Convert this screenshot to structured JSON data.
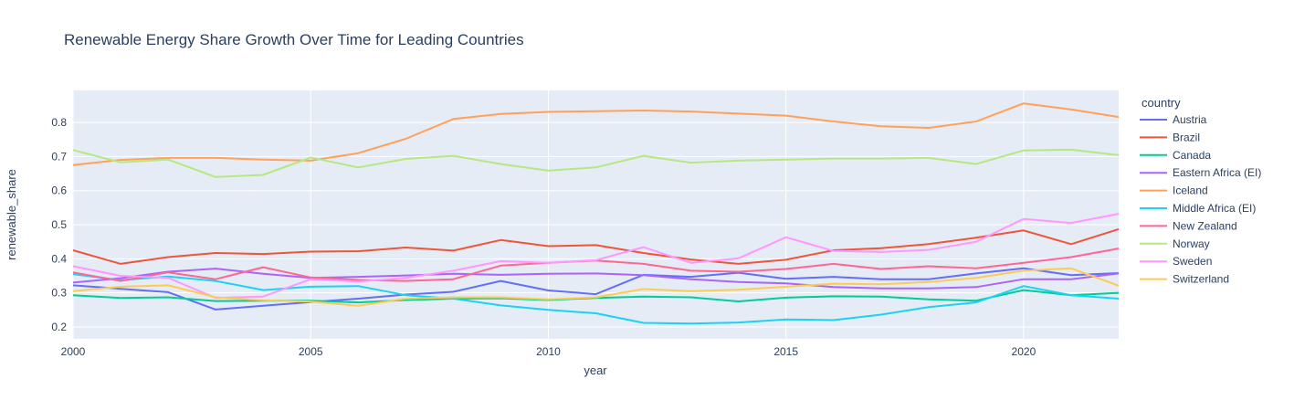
{
  "title": "Renewable Energy Share Growth Over Time for Leading Countries",
  "chart_data": {
    "type": "line",
    "title": "Renewable Energy Share Growth Over Time for Leading Countries",
    "xlabel": "year",
    "ylabel": "renewable_share",
    "legend_title": "country",
    "legend_position": "right",
    "grid": true,
    "plot_bg_color": "#E5ECF6",
    "grid_color": "#FFFFFF",
    "text_color": "#2a3f5f",
    "line_width": 2,
    "xlim": [
      2000,
      2022
    ],
    "ylim": [
      0.165,
      0.894
    ],
    "xticks": [
      2000,
      2005,
      2010,
      2015,
      2020
    ],
    "yticks": [
      0.2,
      0.3,
      0.4,
      0.5,
      0.6,
      0.7,
      0.8
    ],
    "x": [
      2000,
      2001,
      2002,
      2003,
      2004,
      2005,
      2006,
      2007,
      2008,
      2009,
      2010,
      2011,
      2012,
      2013,
      2014,
      2015,
      2016,
      2017,
      2018,
      2019,
      2020,
      2021,
      2022
    ],
    "series": [
      {
        "name": "Austria",
        "color": "#636EFA",
        "values": [
          0.322,
          0.312,
          0.302,
          0.251,
          0.262,
          0.273,
          0.283,
          0.295,
          0.303,
          0.335,
          0.307,
          0.296,
          0.353,
          0.347,
          0.359,
          0.341,
          0.347,
          0.34,
          0.34,
          0.357,
          0.372,
          0.352,
          0.358
        ]
      },
      {
        "name": "Brazil",
        "color": "#EF553B",
        "values": [
          0.425,
          0.385,
          0.405,
          0.417,
          0.414,
          0.421,
          0.422,
          0.433,
          0.424,
          0.455,
          0.437,
          0.44,
          0.417,
          0.398,
          0.385,
          0.397,
          0.425,
          0.431,
          0.443,
          0.462,
          0.483,
          0.443,
          0.487
        ]
      },
      {
        "name": "Canada",
        "color": "#00CC96",
        "values": [
          0.293,
          0.285,
          0.287,
          0.276,
          0.277,
          0.277,
          0.272,
          0.279,
          0.283,
          0.284,
          0.279,
          0.285,
          0.289,
          0.287,
          0.275,
          0.286,
          0.29,
          0.289,
          0.281,
          0.277,
          0.308,
          0.293,
          0.3
        ]
      },
      {
        "name": "Eastern Africa (EI)",
        "color": "#AB63FA",
        "values": [
          0.33,
          0.343,
          0.362,
          0.371,
          0.356,
          0.344,
          0.347,
          0.351,
          0.356,
          0.353,
          0.356,
          0.357,
          0.352,
          0.34,
          0.332,
          0.328,
          0.317,
          0.313,
          0.313,
          0.317,
          0.34,
          0.34,
          0.357
        ]
      },
      {
        "name": "Iceland",
        "color": "#FFA15A",
        "values": [
          0.675,
          0.69,
          0.696,
          0.696,
          0.691,
          0.688,
          0.71,
          0.752,
          0.81,
          0.825,
          0.831,
          0.833,
          0.835,
          0.832,
          0.826,
          0.82,
          0.803,
          0.789,
          0.784,
          0.803,
          0.856,
          0.838,
          0.816
        ]
      },
      {
        "name": "Middle Africa (EI)",
        "color": "#19D3F3",
        "values": [
          0.355,
          0.337,
          0.348,
          0.335,
          0.308,
          0.318,
          0.32,
          0.293,
          0.283,
          0.263,
          0.25,
          0.24,
          0.212,
          0.21,
          0.213,
          0.222,
          0.22,
          0.236,
          0.258,
          0.272,
          0.32,
          0.293,
          0.283
        ]
      },
      {
        "name": "New Zealand",
        "color": "#FF6692",
        "values": [
          0.36,
          0.335,
          0.36,
          0.34,
          0.375,
          0.345,
          0.338,
          0.335,
          0.34,
          0.38,
          0.388,
          0.395,
          0.385,
          0.365,
          0.362,
          0.37,
          0.385,
          0.37,
          0.378,
          0.372,
          0.388,
          0.405,
          0.43
        ]
      },
      {
        "name": "Norway",
        "color": "#B6E880",
        "values": [
          0.719,
          0.683,
          0.691,
          0.64,
          0.646,
          0.697,
          0.668,
          0.693,
          0.702,
          0.678,
          0.659,
          0.668,
          0.702,
          0.682,
          0.688,
          0.691,
          0.694,
          0.694,
          0.696,
          0.678,
          0.718,
          0.72,
          0.704
        ]
      },
      {
        "name": "Sweden",
        "color": "#FF97FF",
        "values": [
          0.378,
          0.35,
          0.344,
          0.285,
          0.289,
          0.34,
          0.333,
          0.344,
          0.365,
          0.393,
          0.388,
          0.396,
          0.434,
          0.388,
          0.401,
          0.463,
          0.423,
          0.42,
          0.426,
          0.45,
          0.517,
          0.505,
          0.532
        ]
      },
      {
        "name": "Switzerland",
        "color": "#FECB52",
        "values": [
          0.305,
          0.318,
          0.322,
          0.287,
          0.278,
          0.274,
          0.262,
          0.283,
          0.287,
          0.287,
          0.281,
          0.287,
          0.311,
          0.305,
          0.309,
          0.318,
          0.327,
          0.325,
          0.332,
          0.344,
          0.365,
          0.372,
          0.321
        ]
      }
    ]
  }
}
